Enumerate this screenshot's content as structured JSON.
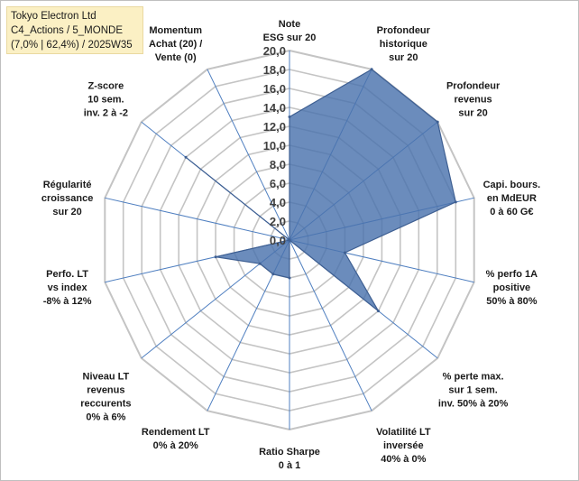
{
  "title": {
    "line1": "Tokyo Electron Ltd",
    "line2": "C4_Actions / 5_MONDE",
    "line3": "(7,0% | 62,4%) / 2025W35"
  },
  "chart_data": {
    "type": "radar",
    "rmin": 0,
    "rmax": 20,
    "ticks": [
      "0,0",
      "2,0",
      "4,0",
      "6,0",
      "8,0",
      "10,0",
      "12,0",
      "14,0",
      "16,0",
      "18,0",
      "20,0"
    ],
    "grid": true,
    "colors": {
      "fill": "#4a73ad",
      "stroke": "#3e5f92",
      "grid": "#c4c4c4",
      "spoke": "#4f7fc0"
    },
    "axes": [
      {
        "label": [
          "Note",
          "ESG sur 20"
        ]
      },
      {
        "label": [
          "Profondeur",
          "historique",
          "sur 20"
        ]
      },
      {
        "label": [
          "Profondeur",
          "revenus",
          "sur 20"
        ]
      },
      {
        "label": [
          "Capi. bours.",
          "en MdEUR",
          "0 à 60 G€"
        ]
      },
      {
        "label": [
          "% perfo 1A",
          "positive",
          "50% à 80%"
        ]
      },
      {
        "label": [
          "% perte max.",
          "sur 1 sem.",
          "inv. 50% à 20%"
        ]
      },
      {
        "label": [
          "Volatilité LT",
          "inversée",
          "40% à 0%"
        ]
      },
      {
        "label": [
          "Ratio Sharpe",
          "0 à 1"
        ]
      },
      {
        "label": [
          "Rendement LT",
          "0% à 20%"
        ]
      },
      {
        "label": [
          "Niveau LT",
          "revenus",
          "reccurents",
          "0% à 6%"
        ]
      },
      {
        "label": [
          "Perfo. LT",
          "vs index",
          "-8% à 12%"
        ]
      },
      {
        "label": [
          "Régularité",
          "croissance",
          "sur 20"
        ]
      },
      {
        "label": [
          "Z-score",
          "10 sem.",
          "inv. 2 à -2"
        ]
      },
      {
        "label": [
          "Momentum",
          "Achat (20) /",
          "Vente (0)"
        ]
      }
    ],
    "values": [
      13,
      20,
      20,
      18,
      6,
      12,
      0,
      4,
      4,
      4,
      8,
      0,
      14,
      0
    ]
  }
}
